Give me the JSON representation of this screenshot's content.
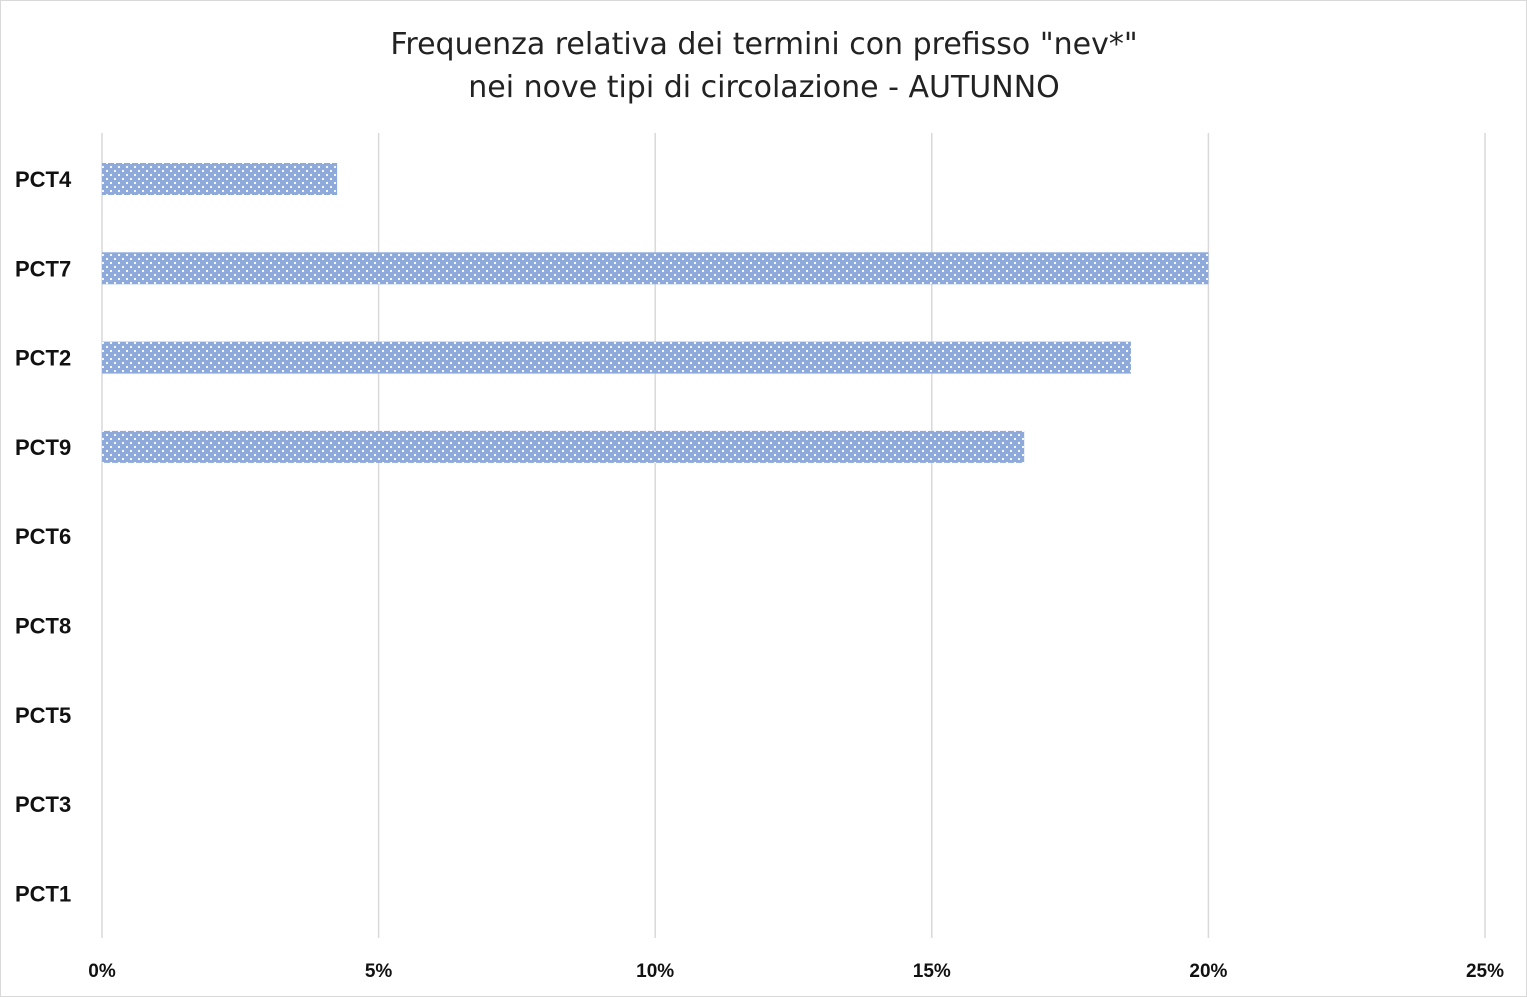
{
  "chart_data": {
    "type": "bar",
    "orientation": "horizontal",
    "title_lines": [
      "Frequenza relativa dei termini con prefisso \"nev*\"",
      "nei nove tipi di circolazione - AUTUNNO"
    ],
    "categories": [
      "PCT4",
      "PCT7",
      "PCT2",
      "PCT9",
      "PCT6",
      "PCT8",
      "PCT5",
      "PCT3",
      "PCT1"
    ],
    "values": [
      0.0425,
      0.2,
      0.186,
      0.1667,
      0,
      0,
      0,
      0,
      0
    ],
    "xlim": [
      0,
      0.25
    ],
    "x_ticks": [
      0,
      0.05,
      0.1,
      0.15,
      0.2,
      0.25
    ],
    "x_tick_labels": [
      "0%",
      "5%",
      "10%",
      "15%",
      "20%",
      "25%"
    ],
    "xlabel": "",
    "ylabel": "",
    "grid": true,
    "legend": "none",
    "bar_color": "#8eaadb",
    "bar_dot_color": "#ffffff",
    "grid_color": "#d9d9d9"
  }
}
